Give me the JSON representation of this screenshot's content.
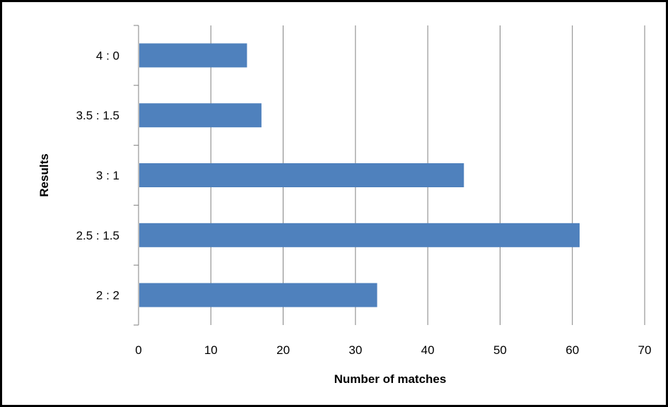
{
  "chart_data": {
    "type": "bar",
    "orientation": "horizontal",
    "categories": [
      "4 : 0",
      "3.5 : 1.5",
      "3 : 1",
      "2.5 : 1.5",
      "2 : 2"
    ],
    "values": [
      15,
      17,
      45,
      61,
      33
    ],
    "xlabel": "Number of matches",
    "ylabel": "Results",
    "xlim": [
      0,
      70
    ],
    "xticks": [
      "0",
      "10",
      "20",
      "30",
      "40",
      "50",
      "60",
      "70"
    ],
    "grid": "vertical",
    "legend": "none",
    "bar_color": "#4F81BD",
    "grid_color": "#808080"
  }
}
